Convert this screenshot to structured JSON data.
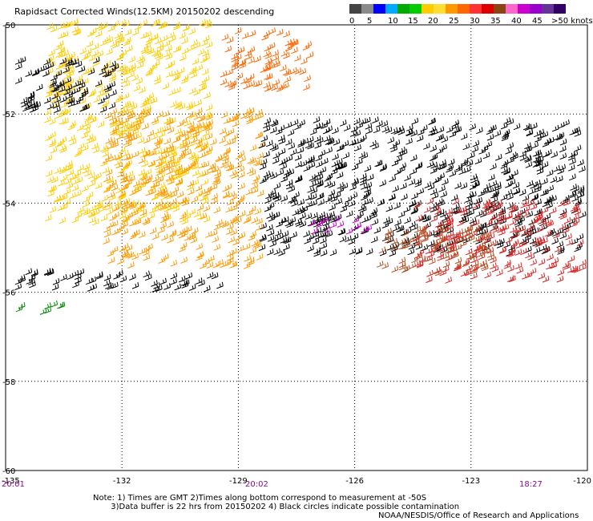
{
  "title": "Rapidsact Corrected Winds(12.5KM) 20150202 descending",
  "legend": {
    "colors": [
      "#444444",
      "#8a8a8a",
      "#0000ff",
      "#00aaff",
      "#00ccff",
      "#00aa00",
      "#00dd00",
      "#ffcc00",
      "#ffdd33",
      "#ff9900",
      "#ff6600",
      "#ff3333",
      "#dd0000",
      "#8b4513",
      "#ff66cc",
      "#cc00cc",
      "#9900cc",
      "#663399",
      "#330066",
      "#1a0033",
      "#000000"
    ],
    "labels": [
      "0",
      "5",
      "10",
      "15",
      "20",
      "25",
      "30",
      "35",
      "40",
      "45",
      ">50 knots"
    ]
  },
  "axes": {
    "lat_ticks": [
      "-50",
      "-52",
      "-54",
      "-56",
      "-58",
      "-60"
    ],
    "lon_ticks": [
      "-135",
      "-132",
      "-129",
      "-126",
      "-123",
      "-120"
    ]
  },
  "times": [
    "20:01",
    "20:02",
    "18:27"
  ],
  "notes": "Note: 1) Times are GMT 2)Times along bottom correspond to measurement at -50S\n       3)Data buffer is 22 hrs from 20150202 4) Black circles indicate possible contamination",
  "credit": "NOAA/NESDIS/Office of Research and Applications",
  "wind_swaths": [
    {
      "color": "#ffcc00",
      "lat": [
        -50.0,
        -54.5
      ],
      "lon": [
        -134.0,
        -129.8
      ]
    },
    {
      "color": "#ff9900",
      "lat": [
        -52.0,
        -55.5
      ],
      "lon": [
        -132.5,
        -128.5
      ]
    },
    {
      "color": "#ff6600",
      "lat": [
        -50.2,
        -51.5
      ],
      "lon": [
        -129.5,
        -127.2
      ]
    },
    {
      "color": "#000000",
      "lat": [
        -50.8,
        -52.0
      ],
      "lon": [
        -134.8,
        -132.2
      ]
    },
    {
      "color": "#000000",
      "lat": [
        -55.6,
        -56.0
      ],
      "lon": [
        -134.8,
        -129.5
      ]
    },
    {
      "color": "#008800",
      "lat": [
        -56.3,
        -56.5
      ],
      "lon": [
        -134.8,
        -133.5
      ]
    },
    {
      "color": "#000000",
      "lat": [
        -52.2,
        -55.2
      ],
      "lon": [
        -128.5,
        -120.2
      ]
    },
    {
      "color": "#cc00cc",
      "lat": [
        -54.4,
        -54.7
      ],
      "lon": [
        -127.2,
        -125.5
      ]
    },
    {
      "color": "#dd2222",
      "lat": [
        -54.0,
        -55.8
      ],
      "lon": [
        -124.5,
        -120.2
      ]
    },
    {
      "color": "#b05020",
      "lat": [
        -54.6,
        -55.6
      ],
      "lon": [
        -125.5,
        -122.5
      ]
    }
  ]
}
